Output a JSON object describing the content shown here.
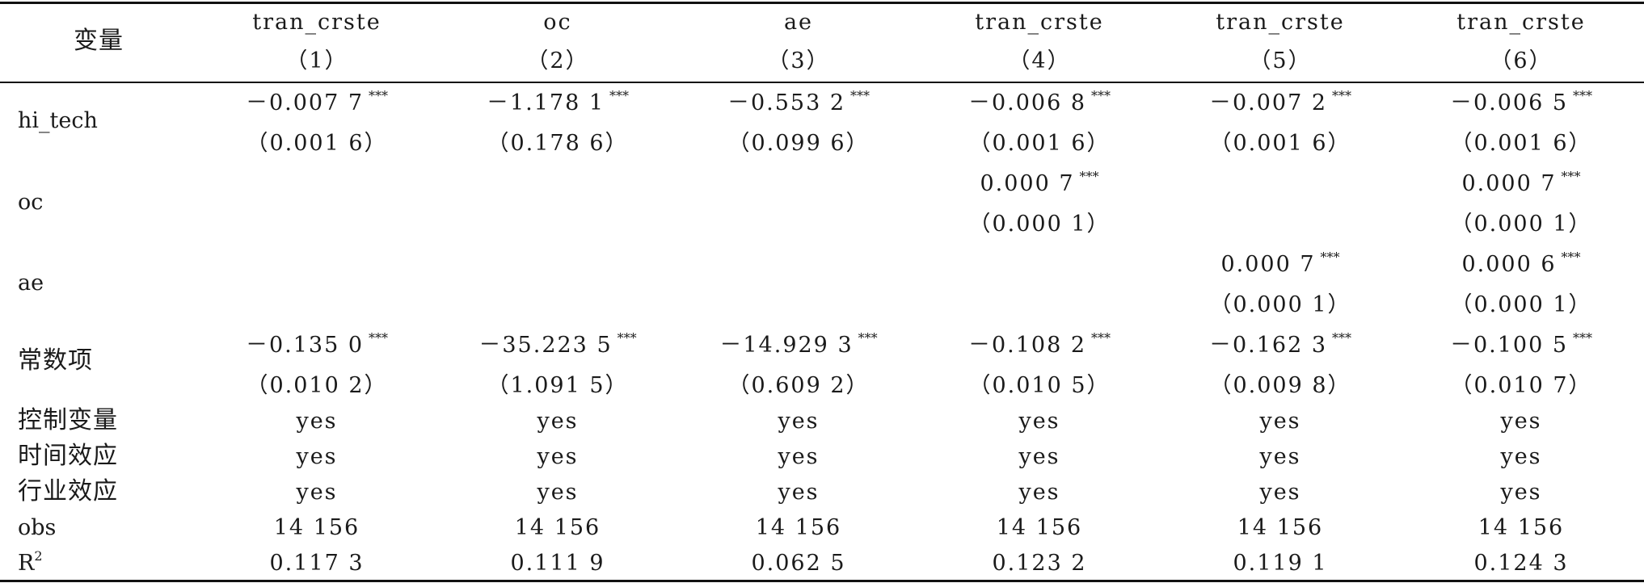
{
  "header": {
    "variable_label": "变量",
    "columns": [
      {
        "dep": "tran_crste",
        "num": "（1）"
      },
      {
        "dep": "oc",
        "num": "（2）"
      },
      {
        "dep": "ae",
        "num": "（3）"
      },
      {
        "dep": "tran_crste",
        "num": "（4）"
      },
      {
        "dep": "tran_crste",
        "num": "（5）"
      },
      {
        "dep": "tran_crste",
        "num": "（6）"
      }
    ]
  },
  "rows": {
    "hi_tech": {
      "label": "hi_tech",
      "coef": [
        "－0.007 7",
        "－1.178 1",
        "－0.553 2",
        "－0.006 8",
        "－0.007 2",
        "－0.006 5"
      ],
      "se": [
        "（0.001 6）",
        "（0.178 6）",
        "（0.099 6）",
        "（0.001 6）",
        "（0.001 6）",
        "（0.001 6）"
      ]
    },
    "oc": {
      "label": "oc",
      "coef": [
        "",
        "",
        "",
        "0.000 7",
        "",
        "0.000 7"
      ],
      "se": [
        "",
        "",
        "",
        "（0.000 1）",
        "",
        "（0.000 1）"
      ]
    },
    "ae": {
      "label": "ae",
      "coef": [
        "",
        "",
        "",
        "",
        "0.000 7",
        "0.000 6"
      ],
      "se": [
        "",
        "",
        "",
        "",
        "（0.000 1）",
        "（0.000 1）"
      ]
    },
    "const": {
      "label": "常数项",
      "coef": [
        "－0.135 0",
        "－35.223 5",
        "－14.929 3",
        "－0.108 2",
        "－0.162 3",
        "－0.100 5"
      ],
      "se": [
        "（0.010 2）",
        "（1.091 5）",
        "（0.609 2）",
        "（0.010 5）",
        "（0.009 8）",
        "（0.010 7）"
      ]
    },
    "controls": {
      "label": "控制变量",
      "values": [
        "yes",
        "yes",
        "yes",
        "yes",
        "yes",
        "yes"
      ]
    },
    "time_fe": {
      "label": "时间效应",
      "values": [
        "yes",
        "yes",
        "yes",
        "yes",
        "yes",
        "yes"
      ]
    },
    "industry_fe": {
      "label": "行业效应",
      "values": [
        "yes",
        "yes",
        "yes",
        "yes",
        "yes",
        "yes"
      ]
    },
    "obs": {
      "label": "obs",
      "values": [
        "14 156",
        "14 156",
        "14 156",
        "14 156",
        "14 156",
        "14 156"
      ]
    },
    "r2": {
      "label": "R",
      "label_sup": "2",
      "values": [
        "0.117 3",
        "0.111 9",
        "0.062 5",
        "0.123 2",
        "0.119 1",
        "0.124 3"
      ]
    }
  },
  "significance_mark": "***"
}
